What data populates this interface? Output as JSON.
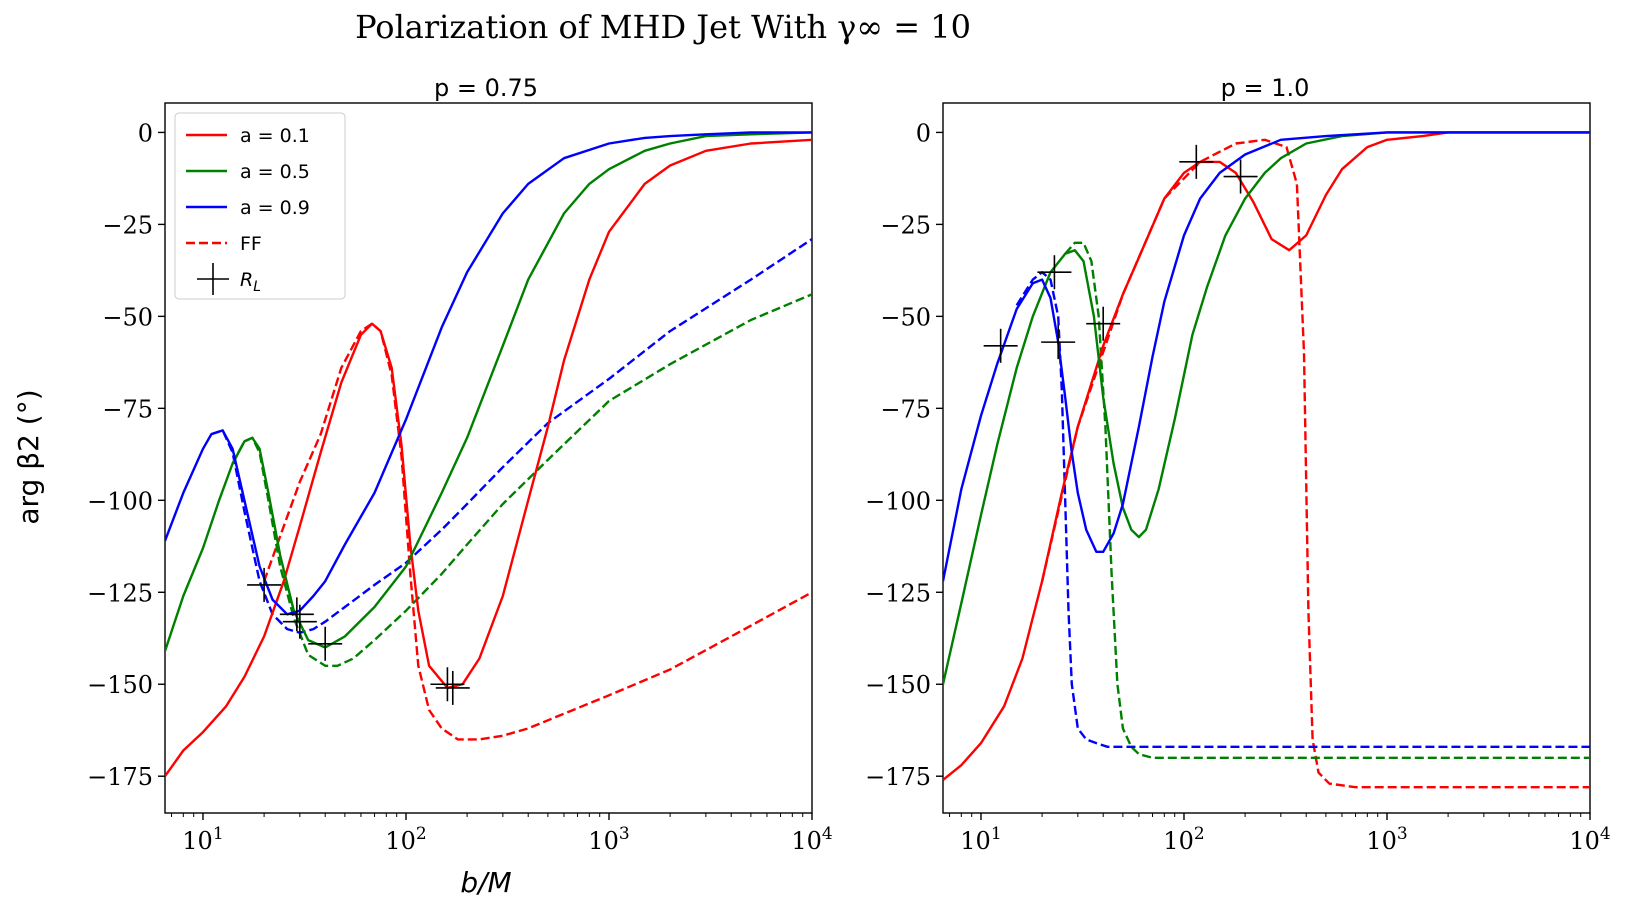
{
  "figure": {
    "title": "Polarization of MHD Jet With γ∞ = 10",
    "ylabel": "arg β2 (°)",
    "xlabel": "b/M"
  },
  "colors": {
    "a01": "#ff0000",
    "a05": "#008000",
    "a09": "#0000ff",
    "marker": "#000000"
  },
  "legend": {
    "placement": "upper-left of left panel",
    "entries": [
      {
        "label": "a = 0.1",
        "color": "#ff0000",
        "style": "solid"
      },
      {
        "label": "a = 0.5",
        "color": "#008000",
        "style": "solid"
      },
      {
        "label": "a = 0.9",
        "color": "#0000ff",
        "style": "solid"
      },
      {
        "label": "FF",
        "color": "#ff0000",
        "style": "dashed"
      },
      {
        "label": "R_L",
        "color": "#000000",
        "style": "marker-plus"
      }
    ]
  },
  "chart_data": [
    {
      "type": "line",
      "title": "p = 0.75",
      "xlabel": "b/M",
      "ylabel": "arg β2 (°)",
      "xscale": "log",
      "xlim": [
        6.5,
        10000
      ],
      "ylim": [
        -185,
        8
      ],
      "xticks": [
        10,
        100,
        1000,
        10000
      ],
      "xtick_labels": [
        "10^1",
        "10^2",
        "10^3",
        "10^4"
      ],
      "yticks": [
        0,
        -25,
        -50,
        -75,
        -100,
        -125,
        -150,
        -175
      ],
      "ytick_labels": [
        "0",
        "−25",
        "−50",
        "−75",
        "−100",
        "−125",
        "−150",
        "−175"
      ],
      "grid": false,
      "legend": "upper-left",
      "series": [
        {
          "name": "a = 0.1",
          "color": "#ff0000",
          "dash": false,
          "x": [
            6.5,
            8,
            10,
            13,
            16,
            20,
            25,
            30,
            38,
            48,
            60,
            68,
            75,
            85,
            95,
            105,
            115,
            130,
            160,
            190,
            230,
            300,
            400,
            500,
            600,
            800,
            1000,
            1500,
            2000,
            3000,
            5000,
            10000
          ],
          "y": [
            -175,
            -168,
            -163,
            -156,
            -148,
            -137,
            -122,
            -107,
            -87,
            -68,
            -55,
            -52,
            -54,
            -64,
            -85,
            -112,
            -130,
            -145,
            -151,
            -150,
            -143,
            -126,
            -100,
            -80,
            -62,
            -40,
            -27,
            -14,
            -9,
            -5,
            -3,
            -2
          ]
        },
        {
          "name": "a = 0.5",
          "color": "#008000",
          "dash": false,
          "x": [
            6.5,
            8,
            10,
            12,
            14,
            16,
            17.5,
            19,
            21,
            24,
            28,
            33,
            40,
            50,
            70,
            100,
            150,
            200,
            300,
            400,
            600,
            800,
            1000,
            1500,
            2000,
            3000,
            5000,
            10000
          ],
          "y": [
            -141,
            -126,
            -113,
            -100,
            -90,
            -84,
            -83,
            -86,
            -98,
            -115,
            -130,
            -138,
            -140,
            -137,
            -129,
            -118,
            -98,
            -83,
            -58,
            -40,
            -22,
            -14,
            -10,
            -5,
            -3,
            -1,
            -0.5,
            0
          ]
        },
        {
          "name": "a = 0.9",
          "color": "#0000ff",
          "dash": false,
          "x": [
            6.5,
            8,
            10,
            11,
            12.5,
            14,
            16,
            19,
            22,
            26,
            30,
            35,
            40,
            50,
            70,
            100,
            150,
            200,
            300,
            400,
            600,
            1000,
            1500,
            2000,
            3000,
            5000,
            10000
          ],
          "y": [
            -111,
            -98,
            -86,
            -82,
            -81,
            -86,
            -100,
            -118,
            -127,
            -131,
            -130,
            -126,
            -122,
            -112,
            -98,
            -78,
            -53,
            -38,
            -22,
            -14,
            -7,
            -3,
            -1.5,
            -1,
            -0.5,
            0,
            0
          ]
        },
        {
          "name": "",
          "color": "#ff0000",
          "dash": true,
          "x": [
            20,
            25,
            30,
            38,
            48,
            60,
            68,
            75,
            85,
            95,
            105,
            115,
            130,
            150,
            180,
            230,
            300,
            400,
            600,
            1000,
            2000,
            4000,
            10000
          ],
          "y": [
            -122,
            -107,
            -95,
            -82,
            -64,
            -54,
            -52,
            -54,
            -66,
            -88,
            -120,
            -145,
            -157,
            -162,
            -165,
            -165,
            -164,
            -162,
            -158,
            -153,
            -146,
            -137,
            -125
          ]
        },
        {
          "name": "",
          "color": "#008000",
          "dash": true,
          "x": [
            14,
            16,
            17.5,
            19,
            21,
            24,
            28,
            33,
            40,
            46,
            55,
            70,
            100,
            150,
            200,
            300,
            500,
            1000,
            2000,
            5000,
            10000
          ],
          "y": [
            -90,
            -84,
            -83,
            -87,
            -100,
            -118,
            -132,
            -142,
            -145,
            -145,
            -143,
            -138,
            -130,
            -120,
            -112,
            -101,
            -89,
            -73,
            -63,
            -51,
            -44
          ]
        },
        {
          "name": "",
          "color": "#0000ff",
          "dash": true,
          "x": [
            11,
            12.5,
            14,
            16,
            19,
            22,
            26,
            30,
            35,
            40,
            50,
            70,
            100,
            150,
            200,
            300,
            500,
            1000,
            2000,
            5000,
            10000
          ],
          "y": [
            -82,
            -81,
            -87,
            -103,
            -122,
            -131,
            -135,
            -136,
            -135,
            -133,
            -129,
            -123,
            -117,
            -108,
            -101,
            -91,
            -79,
            -67,
            -54,
            -40,
            -29
          ]
        }
      ],
      "markers": {
        "name": "R_L",
        "x": [
          20,
          29,
          30,
          40,
          160,
          170
        ],
        "y": [
          -123,
          -131,
          -133,
          -139,
          -150,
          -151
        ]
      }
    },
    {
      "type": "line",
      "title": "p = 1.0",
      "xlabel": "",
      "ylabel": "",
      "xscale": "log",
      "xlim": [
        6.5,
        10000
      ],
      "ylim": [
        -185,
        8
      ],
      "xticks": [
        10,
        100,
        1000,
        10000
      ],
      "xtick_labels": [
        "10^1",
        "10^2",
        "10^3",
        "10^4"
      ],
      "yticks": [
        0,
        -25,
        -50,
        -75,
        -100,
        -125,
        -150,
        -175
      ],
      "ytick_labels": [
        "0",
        "−25",
        "−50",
        "−75",
        "−100",
        "−125",
        "−150",
        "−175"
      ],
      "grid": false,
      "series": [
        {
          "name": "a = 0.1",
          "color": "#ff0000",
          "dash": false,
          "x": [
            6.5,
            8,
            10,
            13,
            16,
            20,
            25,
            30,
            40,
            50,
            60,
            80,
            100,
            120,
            150,
            180,
            220,
            270,
            330,
            400,
            500,
            600,
            800,
            1000,
            1500,
            2000,
            3000,
            10000
          ],
          "y": [
            -176,
            -172,
            -166,
            -156,
            -143,
            -122,
            -98,
            -80,
            -58,
            -44,
            -34,
            -18,
            -11,
            -8,
            -8,
            -11,
            -19,
            -29,
            -32,
            -28,
            -17,
            -10,
            -4,
            -2,
            -1,
            0,
            0,
            0
          ]
        },
        {
          "name": "a = 0.5",
          "color": "#008000",
          "dash": false,
          "x": [
            6.5,
            8,
            10,
            12,
            15,
            18,
            22,
            26,
            29,
            32,
            36,
            40,
            45,
            50,
            55,
            60,
            65,
            75,
            90,
            110,
            130,
            160,
            200,
            250,
            300,
            400,
            600,
            1000,
            2000,
            10000
          ],
          "y": [
            -150,
            -128,
            -104,
            -85,
            -64,
            -50,
            -38,
            -33,
            -32,
            -35,
            -50,
            -72,
            -90,
            -102,
            -108,
            -110,
            -108,
            -97,
            -78,
            -55,
            -42,
            -28,
            -18,
            -11,
            -7,
            -3,
            -1,
            0,
            0,
            0
          ]
        },
        {
          "name": "a = 0.9",
          "color": "#0000ff",
          "dash": false,
          "x": [
            6.5,
            8,
            10,
            12,
            15,
            18,
            20,
            22,
            24,
            26,
            28,
            30,
            33,
            37,
            40,
            45,
            50,
            60,
            70,
            80,
            100,
            120,
            150,
            200,
            300,
            500,
            1000,
            10000
          ],
          "y": [
            -122,
            -97,
            -77,
            -63,
            -48,
            -41,
            -40,
            -45,
            -57,
            -72,
            -87,
            -98,
            -108,
            -114,
            -114,
            -109,
            -101,
            -80,
            -61,
            -46,
            -28,
            -18,
            -11,
            -6,
            -2,
            -1,
            0,
            0
          ]
        },
        {
          "name": "",
          "color": "#ff0000",
          "dash": true,
          "x": [
            20,
            30,
            50,
            80,
            120,
            180,
            250,
            320,
            360,
            390,
            410,
            430,
            460,
            520,
            700,
            1000,
            3000,
            10000
          ],
          "y": [
            -122,
            -80,
            -44,
            -18,
            -8,
            -3,
            -2,
            -4,
            -14,
            -60,
            -130,
            -165,
            -174,
            -177,
            -178,
            -178,
            -178,
            -178
          ]
        },
        {
          "name": "",
          "color": "#008000",
          "dash": true,
          "x": [
            26,
            29,
            32,
            35,
            38,
            41,
            44,
            47,
            50,
            55,
            60,
            70,
            80,
            100,
            200,
            500,
            1000,
            10000
          ],
          "y": [
            -33,
            -30,
            -30,
            -35,
            -50,
            -80,
            -120,
            -150,
            -162,
            -167,
            -169,
            -170,
            -170,
            -170,
            -170,
            -170,
            -170,
            -170
          ]
        },
        {
          "name": "",
          "color": "#0000ff",
          "dash": true,
          "x": [
            15,
            18,
            20,
            22,
            24,
            25,
            26,
            27,
            28,
            30,
            33,
            37,
            42,
            50,
            70,
            100,
            1000,
            10000
          ],
          "y": [
            -47,
            -40,
            -38,
            -40,
            -50,
            -70,
            -100,
            -130,
            -150,
            -162,
            -165,
            -166,
            -167,
            -167,
            -167,
            -167,
            -167,
            -167
          ]
        }
      ],
      "markers": {
        "name": "R_L",
        "x": [
          12.5,
          23,
          24,
          40,
          115,
          190
        ],
        "y": [
          -58,
          -38,
          -57,
          -52,
          -8,
          -12
        ]
      }
    }
  ]
}
